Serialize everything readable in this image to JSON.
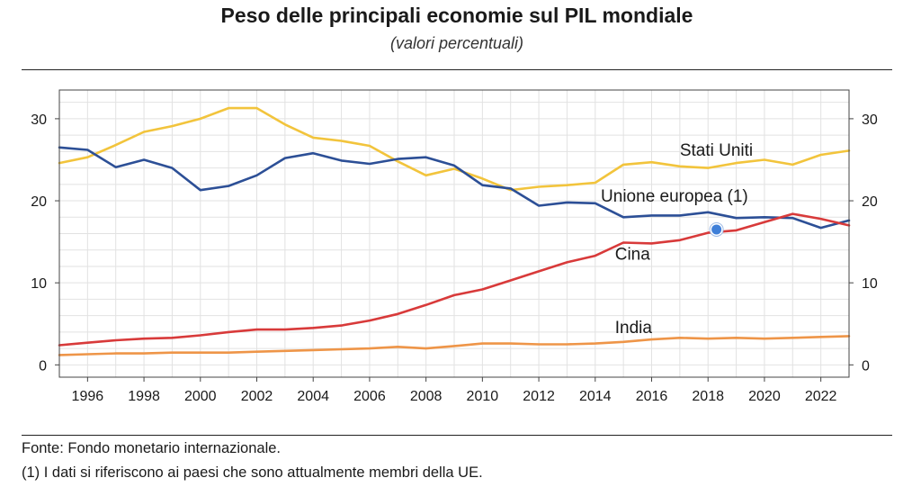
{
  "title": "Peso delle principali economie sul PIL mondiale",
  "subtitle": "(valori percentuali)",
  "source": "Fonte: Fondo monetario internazionale.",
  "footnote": "(1) I dati si riferiscono ai paesi che sono attualmente membri della UE.",
  "colors": {
    "stati_uniti": "#f2c43c",
    "unione_europea": "#2c4f96",
    "cina": "#d83a3a",
    "india": "#ee9548",
    "grid": "#e2e2e2",
    "marker": "#3f7fd8"
  },
  "chart_data": {
    "type": "line",
    "title": "Peso delle principali economie sul PIL mondiale",
    "subtitle": "(valori percentuali)",
    "xlim": [
      1995,
      2023
    ],
    "ylim": [
      -1.5,
      33.5
    ],
    "x_ticks": [
      1996,
      1998,
      2000,
      2002,
      2004,
      2006,
      2008,
      2010,
      2012,
      2014,
      2016,
      2018,
      2020,
      2022
    ],
    "y_ticks": [
      0,
      10,
      20,
      30
    ],
    "y_axis_both_sides": true,
    "grid": true,
    "x": [
      1995,
      1996,
      1997,
      1998,
      1999,
      2000,
      2001,
      2002,
      2003,
      2004,
      2005,
      2006,
      2007,
      2008,
      2009,
      2010,
      2011,
      2012,
      2013,
      2014,
      2015,
      2016,
      2017,
      2018,
      2019,
      2020,
      2021,
      2022,
      2023
    ],
    "series": [
      {
        "name": "Stati Uniti",
        "color_key": "stati_uniti",
        "label_x": 2017,
        "label_y": 25.5,
        "values": [
          24.6,
          25.3,
          26.8,
          28.4,
          29.1,
          30.0,
          31.3,
          31.3,
          29.3,
          27.7,
          27.3,
          26.7,
          24.8,
          23.1,
          23.9,
          22.7,
          21.3,
          21.7,
          21.9,
          22.2,
          24.4,
          24.7,
          24.2,
          24.0,
          24.6,
          25.0,
          24.4,
          25.6,
          26.1
        ]
      },
      {
        "name": "Unione europea (1)",
        "color_key": "unione_europea",
        "label_x": 2014.2,
        "label_y": 19.9,
        "values": [
          26.5,
          26.2,
          24.1,
          25.0,
          24.0,
          21.3,
          21.8,
          23.1,
          25.2,
          25.8,
          24.9,
          24.5,
          25.1,
          25.3,
          24.3,
          21.9,
          21.5,
          19.4,
          19.8,
          19.7,
          18.0,
          18.2,
          18.2,
          18.6,
          17.9,
          18.0,
          17.9,
          16.7,
          17.6
        ]
      },
      {
        "name": "Cina",
        "color_key": "cina",
        "label_x": 2014.7,
        "label_y": 12.8,
        "values": [
          2.4,
          2.7,
          3.0,
          3.2,
          3.3,
          3.6,
          4.0,
          4.3,
          4.3,
          4.5,
          4.8,
          5.4,
          6.2,
          7.3,
          8.5,
          9.2,
          10.3,
          11.4,
          12.5,
          13.3,
          14.9,
          14.8,
          15.2,
          16.1,
          16.4,
          17.4,
          18.4,
          17.8,
          17.0
        ]
      },
      {
        "name": "India",
        "color_key": "india",
        "label_x": 2014.7,
        "label_y": 3.9,
        "values": [
          1.2,
          1.3,
          1.4,
          1.4,
          1.5,
          1.5,
          1.5,
          1.6,
          1.7,
          1.8,
          1.9,
          2.0,
          2.2,
          2.0,
          2.3,
          2.6,
          2.6,
          2.5,
          2.5,
          2.6,
          2.8,
          3.1,
          3.3,
          3.2,
          3.3,
          3.2,
          3.3,
          3.4,
          3.5
        ]
      }
    ],
    "marker": {
      "x": 2018.3,
      "y": 16.5
    }
  }
}
